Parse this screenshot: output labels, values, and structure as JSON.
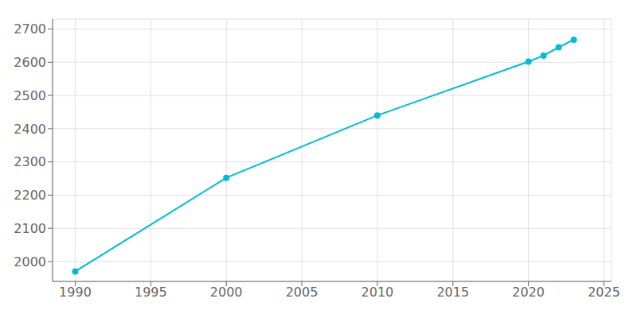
{
  "chart_data": {
    "type": "line",
    "x": [
      1990,
      2000,
      2010,
      2020,
      2021,
      2022,
      2023
    ],
    "values": [
      1970,
      2252,
      2440,
      2602,
      2620,
      2645,
      2668
    ],
    "color": "#00BCD4",
    "marker": "circle",
    "xlim": [
      1988.5,
      2025.5
    ],
    "ylim": [
      1940,
      2730
    ],
    "xticks": [
      1990,
      1995,
      2000,
      2005,
      2010,
      2015,
      2020,
      2025
    ],
    "yticks": [
      2000,
      2100,
      2200,
      2300,
      2400,
      2500,
      2600,
      2700
    ],
    "grid": true
  }
}
